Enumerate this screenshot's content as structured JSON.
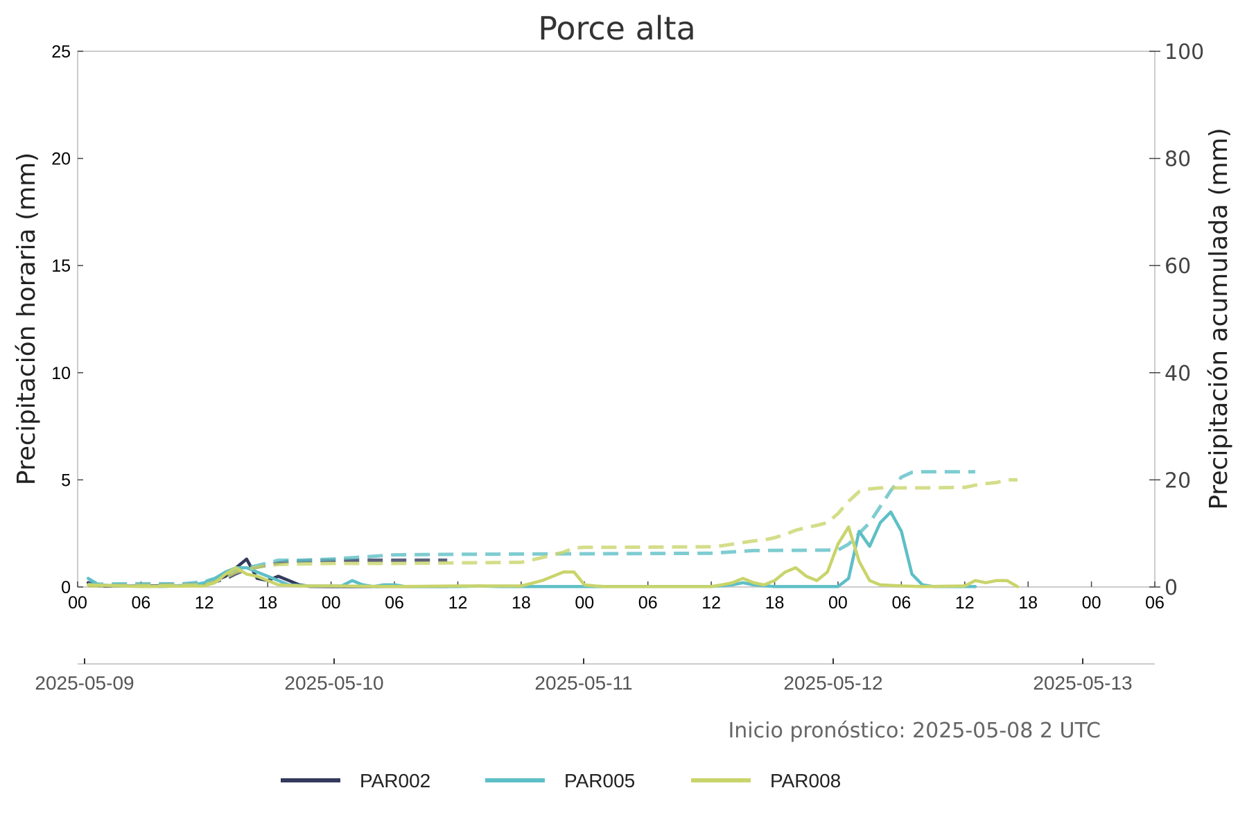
{
  "chart_data": {
    "type": "line",
    "title": "Porce alta",
    "ylabel": "Precipitación horaria (mm)",
    "y2label": "Precipitación acumulada (mm)",
    "ylim": [
      0,
      25
    ],
    "y2lim": [
      0,
      100
    ],
    "yticks": [
      "0",
      "5",
      "10",
      "15",
      "20",
      "25"
    ],
    "y2ticks": [
      "0",
      "20",
      "40",
      "60",
      "80",
      "100"
    ],
    "xlim_hours": [
      0,
      102
    ],
    "xticks": [
      "00",
      "06",
      "12",
      "18",
      "00",
      "06",
      "12",
      "18",
      "00",
      "06",
      "12",
      "18",
      "00",
      "06",
      "12",
      "18",
      "00",
      "06"
    ],
    "date_labels": [
      "2025-05-09",
      "2025-05-10",
      "2025-05-11",
      "2025-05-12",
      "2025-05-13"
    ],
    "annotation": "Inicio pronóstico: 2025-05-08 2 UTC",
    "grid": false,
    "legend_position": "bottom-center",
    "series": [
      {
        "name": "PAR002",
        "color": "#333a5c",
        "hourly": [
          [
            1,
            0.2
          ],
          [
            2,
            0.05
          ],
          [
            5,
            0.05
          ],
          [
            10,
            0.05
          ],
          [
            11,
            0.1
          ],
          [
            12,
            0.15
          ],
          [
            13,
            0.3
          ],
          [
            14,
            0.5
          ],
          [
            15,
            0.9
          ],
          [
            16,
            1.3
          ],
          [
            17,
            0.4
          ],
          [
            18,
            0.3
          ],
          [
            19,
            0.5
          ],
          [
            20,
            0.3
          ],
          [
            21,
            0.1
          ],
          [
            22,
            0.03
          ],
          [
            24,
            0.02
          ],
          [
            30,
            0.02
          ],
          [
            35,
            0.02
          ]
        ],
        "cumulative": [
          [
            1,
            0.3
          ],
          [
            6,
            0.4
          ],
          [
            10,
            0.5
          ],
          [
            12,
            0.6
          ],
          [
            13,
            1.0
          ],
          [
            14,
            1.5
          ],
          [
            15,
            2.5
          ],
          [
            16,
            3.3
          ],
          [
            17,
            3.7
          ],
          [
            18,
            4.1
          ],
          [
            19,
            4.5
          ],
          [
            20,
            4.8
          ],
          [
            22,
            4.9
          ],
          [
            24,
            5.0
          ],
          [
            30,
            5.0
          ],
          [
            35,
            5.0
          ]
        ]
      },
      {
        "name": "PAR005",
        "color": "#5ebfc6",
        "hourly": [
          [
            1,
            0.4
          ],
          [
            2,
            0.1
          ],
          [
            4,
            0.05
          ],
          [
            8,
            0.02
          ],
          [
            11,
            0.1
          ],
          [
            12,
            0.2
          ],
          [
            13,
            0.4
          ],
          [
            14,
            0.7
          ],
          [
            15,
            0.9
          ],
          [
            16,
            0.9
          ],
          [
            17,
            0.7
          ],
          [
            18,
            0.5
          ],
          [
            19,
            0.3
          ],
          [
            20,
            0.1
          ],
          [
            22,
            0.05
          ],
          [
            25,
            0.05
          ],
          [
            26,
            0.3
          ],
          [
            27,
            0.1
          ],
          [
            28,
            0.02
          ],
          [
            29,
            0.1
          ],
          [
            30,
            0.1
          ],
          [
            31,
            0.02
          ],
          [
            36,
            0.02
          ],
          [
            38,
            0.05
          ],
          [
            40,
            0.02
          ],
          [
            48,
            0.02
          ],
          [
            60,
            0.02
          ],
          [
            62,
            0.1
          ],
          [
            63,
            0.2
          ],
          [
            64,
            0.1
          ],
          [
            66,
            0.02
          ],
          [
            72,
            0.02
          ],
          [
            73,
            0.4
          ],
          [
            74,
            2.6
          ],
          [
            75,
            1.9
          ],
          [
            76,
            3.0
          ],
          [
            77,
            3.5
          ],
          [
            78,
            2.6
          ],
          [
            79,
            0.6
          ],
          [
            80,
            0.1
          ],
          [
            81,
            0.02
          ],
          [
            85,
            0.02
          ]
        ],
        "cumulative": [
          [
            1,
            0.5
          ],
          [
            4,
            0.6
          ],
          [
            10,
            0.6
          ],
          [
            12,
            1.0
          ],
          [
            13,
            1.6
          ],
          [
            14,
            2.4
          ],
          [
            15,
            3.2
          ],
          [
            16,
            3.6
          ],
          [
            17,
            4.0
          ],
          [
            18,
            4.5
          ],
          [
            19,
            5.0
          ],
          [
            21,
            5.0
          ],
          [
            24,
            5.2
          ],
          [
            27,
            5.6
          ],
          [
            30,
            6.0
          ],
          [
            36,
            6.1
          ],
          [
            48,
            6.2
          ],
          [
            60,
            6.3
          ],
          [
            64,
            6.8
          ],
          [
            72,
            6.9
          ],
          [
            73,
            8.0
          ],
          [
            74,
            10.0
          ],
          [
            75,
            12.0
          ],
          [
            76,
            15.0
          ],
          [
            77,
            18.0
          ],
          [
            78,
            20.5
          ],
          [
            79,
            21.4
          ],
          [
            80,
            21.5
          ],
          [
            85,
            21.5
          ]
        ]
      },
      {
        "name": "PAR008",
        "color": "#c9d46b",
        "hourly": [
          [
            1,
            0.1
          ],
          [
            6,
            0.02
          ],
          [
            12,
            0.05
          ],
          [
            13,
            0.2
          ],
          [
            14,
            0.6
          ],
          [
            15,
            0.9
          ],
          [
            16,
            0.6
          ],
          [
            17,
            0.5
          ],
          [
            18,
            0.3
          ],
          [
            19,
            0.1
          ],
          [
            21,
            0.05
          ],
          [
            24,
            0.05
          ],
          [
            30,
            0.02
          ],
          [
            36,
            0.05
          ],
          [
            42,
            0.05
          ],
          [
            44,
            0.3
          ],
          [
            46,
            0.7
          ],
          [
            47,
            0.7
          ],
          [
            48,
            0.1
          ],
          [
            49,
            0.05
          ],
          [
            50,
            0.02
          ],
          [
            60,
            0.02
          ],
          [
            61,
            0.1
          ],
          [
            62,
            0.2
          ],
          [
            63,
            0.4
          ],
          [
            64,
            0.2
          ],
          [
            65,
            0.1
          ],
          [
            66,
            0.3
          ],
          [
            67,
            0.7
          ],
          [
            68,
            0.9
          ],
          [
            69,
            0.5
          ],
          [
            70,
            0.3
          ],
          [
            71,
            0.7
          ],
          [
            72,
            2.0
          ],
          [
            73,
            2.8
          ],
          [
            74,
            1.2
          ],
          [
            75,
            0.3
          ],
          [
            76,
            0.1
          ],
          [
            78,
            0.05
          ],
          [
            80,
            0.02
          ],
          [
            84,
            0.05
          ],
          [
            85,
            0.3
          ],
          [
            86,
            0.2
          ],
          [
            87,
            0.3
          ],
          [
            88,
            0.3
          ],
          [
            89,
            0.02
          ]
        ],
        "cumulative": [
          [
            1,
            0.2
          ],
          [
            6,
            0.3
          ],
          [
            12,
            0.4
          ],
          [
            13,
            1.0
          ],
          [
            14,
            1.8
          ],
          [
            15,
            2.8
          ],
          [
            16,
            3.3
          ],
          [
            17,
            3.7
          ],
          [
            18,
            4.0
          ],
          [
            19,
            4.2
          ],
          [
            21,
            4.3
          ],
          [
            24,
            4.4
          ],
          [
            30,
            4.4
          ],
          [
            36,
            4.5
          ],
          [
            42,
            4.6
          ],
          [
            44,
            5.5
          ],
          [
            46,
            6.5
          ],
          [
            47,
            7.3
          ],
          [
            48,
            7.4
          ],
          [
            50,
            7.4
          ],
          [
            60,
            7.5
          ],
          [
            61,
            7.7
          ],
          [
            62,
            8.0
          ],
          [
            63,
            8.3
          ],
          [
            64,
            8.6
          ],
          [
            65,
            8.8
          ],
          [
            66,
            9.2
          ],
          [
            67,
            9.8
          ],
          [
            68,
            10.6
          ],
          [
            69,
            11.1
          ],
          [
            70,
            11.5
          ],
          [
            71,
            12.0
          ],
          [
            72,
            13.7
          ],
          [
            73,
            16.0
          ],
          [
            74,
            17.8
          ],
          [
            75,
            18.3
          ],
          [
            76,
            18.5
          ],
          [
            80,
            18.5
          ],
          [
            84,
            18.6
          ],
          [
            85,
            19.0
          ],
          [
            86,
            19.3
          ],
          [
            87,
            19.5
          ],
          [
            88,
            20.0
          ],
          [
            89,
            20.0
          ]
        ]
      }
    ]
  }
}
